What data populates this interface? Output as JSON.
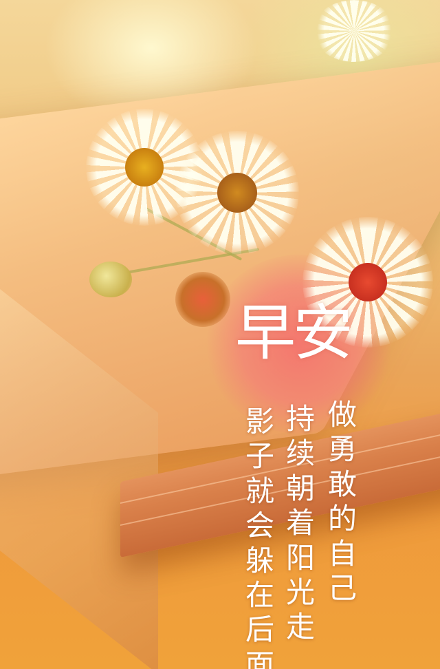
{
  "image": {
    "title": "早安",
    "lines": [
      "做勇敢的自己",
      "持续朝着阳光走",
      "影子就会躲在后面"
    ]
  },
  "colors": {
    "background_warm": "#f0a23a",
    "text": "#ffffff",
    "flower_center": "#e4a820",
    "pink_blossom": "#f07070"
  }
}
